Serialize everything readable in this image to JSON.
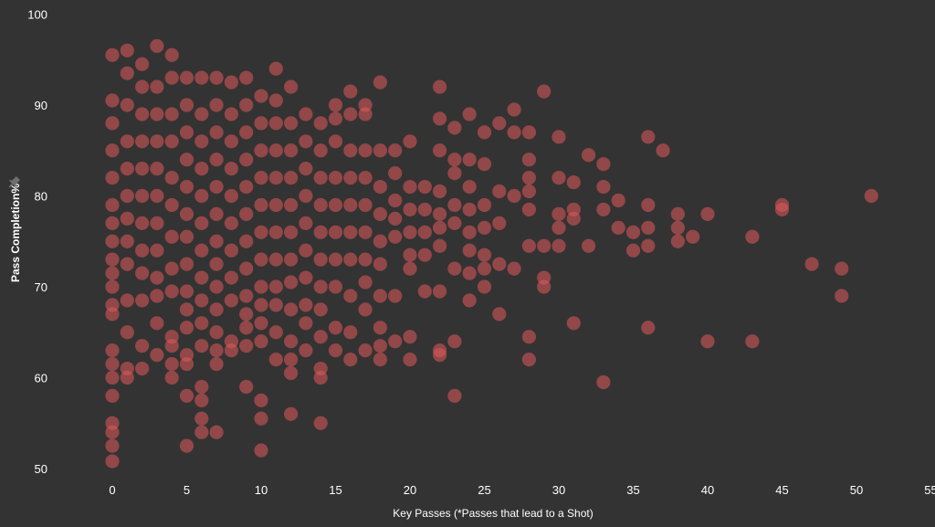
{
  "chart_data": {
    "type": "scatter",
    "xlabel": "Key Passes (*Passes that lead to a Shot)",
    "ylabel": "Pass Completion%",
    "xlim": [
      0,
      55
    ],
    "ylim": [
      50,
      100
    ],
    "x_ticks": [
      0,
      5,
      10,
      15,
      20,
      25,
      30,
      35,
      40,
      45,
      50,
      55
    ],
    "y_ticks": [
      50,
      60,
      70,
      80,
      90,
      100
    ],
    "grid": false,
    "colors": {
      "background": "#333333",
      "marker": "#e0585a",
      "text": "#ffffff",
      "icon": "#6e6e6e"
    },
    "y_axis_icon": "pin-icon",
    "points": [
      [
        0,
        95.5
      ],
      [
        0,
        90.5
      ],
      [
        0,
        88
      ],
      [
        0,
        85
      ],
      [
        0,
        82
      ],
      [
        0,
        79
      ],
      [
        0,
        77
      ],
      [
        0,
        75
      ],
      [
        0,
        73
      ],
      [
        0,
        71.5
      ],
      [
        0,
        70
      ],
      [
        0,
        68
      ],
      [
        0,
        67
      ],
      [
        0,
        63
      ],
      [
        0,
        61.5
      ],
      [
        0,
        60
      ],
      [
        0,
        58
      ],
      [
        0,
        55
      ],
      [
        0,
        54
      ],
      [
        0,
        52.5
      ],
      [
        0,
        50.8
      ],
      [
        1,
        96
      ],
      [
        1,
        93.5
      ],
      [
        1,
        90
      ],
      [
        1,
        86
      ],
      [
        1,
        83
      ],
      [
        1,
        80
      ],
      [
        1,
        77.5
      ],
      [
        1,
        75
      ],
      [
        1,
        72.5
      ],
      [
        1,
        68.5
      ],
      [
        1,
        65
      ],
      [
        1,
        61
      ],
      [
        1,
        60
      ],
      [
        2,
        94.5
      ],
      [
        2,
        92
      ],
      [
        2,
        89
      ],
      [
        2,
        86
      ],
      [
        2,
        83
      ],
      [
        2,
        80
      ],
      [
        2,
        77
      ],
      [
        2,
        74
      ],
      [
        2,
        71.5
      ],
      [
        2,
        68.5
      ],
      [
        2,
        63.5
      ],
      [
        2,
        61
      ],
      [
        3,
        96.5
      ],
      [
        3,
        92
      ],
      [
        3,
        89
      ],
      [
        3,
        86
      ],
      [
        3,
        83
      ],
      [
        3,
        80
      ],
      [
        3,
        77
      ],
      [
        3,
        74
      ],
      [
        3,
        71
      ],
      [
        3,
        69
      ],
      [
        3,
        66
      ],
      [
        3,
        62.5
      ],
      [
        4,
        95.5
      ],
      [
        4,
        93
      ],
      [
        4,
        89
      ],
      [
        4,
        86
      ],
      [
        4,
        82
      ],
      [
        4,
        79
      ],
      [
        4,
        75.5
      ],
      [
        4,
        72
      ],
      [
        4,
        69.5
      ],
      [
        4,
        64.5
      ],
      [
        4,
        63.5
      ],
      [
        4,
        61.5
      ],
      [
        4,
        60
      ],
      [
        5,
        93
      ],
      [
        5,
        90
      ],
      [
        5,
        87
      ],
      [
        5,
        84
      ],
      [
        5,
        81
      ],
      [
        5,
        78
      ],
      [
        5,
        75.5
      ],
      [
        5,
        72.5
      ],
      [
        5,
        69.5
      ],
      [
        5,
        67.5
      ],
      [
        5,
        65.5
      ],
      [
        5,
        62.5
      ],
      [
        5,
        61.5
      ],
      [
        5,
        58
      ],
      [
        5,
        52.5
      ],
      [
        6,
        93
      ],
      [
        6,
        89
      ],
      [
        6,
        86
      ],
      [
        6,
        83
      ],
      [
        6,
        80
      ],
      [
        6,
        77
      ],
      [
        6,
        74
      ],
      [
        6,
        71
      ],
      [
        6,
        68.5
      ],
      [
        6,
        66
      ],
      [
        6,
        63.5
      ],
      [
        6,
        59
      ],
      [
        6,
        57.5
      ],
      [
        6,
        55.5
      ],
      [
        6,
        54
      ],
      [
        7,
        93
      ],
      [
        7,
        90
      ],
      [
        7,
        87
      ],
      [
        7,
        84
      ],
      [
        7,
        81
      ],
      [
        7,
        78
      ],
      [
        7,
        75
      ],
      [
        7,
        72.5
      ],
      [
        7,
        70
      ],
      [
        7,
        67.5
      ],
      [
        7,
        65
      ],
      [
        7,
        63
      ],
      [
        7,
        61.5
      ],
      [
        7,
        54
      ],
      [
        8,
        92.5
      ],
      [
        8,
        89
      ],
      [
        8,
        86
      ],
      [
        8,
        83
      ],
      [
        8,
        80
      ],
      [
        8,
        77
      ],
      [
        8,
        74
      ],
      [
        8,
        71
      ],
      [
        8,
        68.5
      ],
      [
        8,
        64
      ],
      [
        8,
        63
      ],
      [
        9,
        93
      ],
      [
        9,
        90
      ],
      [
        9,
        87
      ],
      [
        9,
        84
      ],
      [
        9,
        81
      ],
      [
        9,
        78
      ],
      [
        9,
        75
      ],
      [
        9,
        72
      ],
      [
        9,
        69
      ],
      [
        9,
        67
      ],
      [
        9,
        65.5
      ],
      [
        9,
        63.5
      ],
      [
        9,
        59
      ],
      [
        10,
        91
      ],
      [
        10,
        88
      ],
      [
        10,
        85
      ],
      [
        10,
        82
      ],
      [
        10,
        79
      ],
      [
        10,
        76
      ],
      [
        10,
        73
      ],
      [
        10,
        70
      ],
      [
        10,
        68
      ],
      [
        10,
        66
      ],
      [
        10,
        64
      ],
      [
        10,
        57.5
      ],
      [
        10,
        55.5
      ],
      [
        10,
        52
      ],
      [
        11,
        94
      ],
      [
        11,
        90.5
      ],
      [
        11,
        88
      ],
      [
        11,
        85
      ],
      [
        11,
        82
      ],
      [
        11,
        79
      ],
      [
        11,
        76
      ],
      [
        11,
        73
      ],
      [
        11,
        70
      ],
      [
        11,
        68
      ],
      [
        11,
        65
      ],
      [
        11,
        62
      ],
      [
        12,
        92
      ],
      [
        12,
        88
      ],
      [
        12,
        85
      ],
      [
        12,
        82
      ],
      [
        12,
        79
      ],
      [
        12,
        76
      ],
      [
        12,
        73
      ],
      [
        12,
        70.5
      ],
      [
        12,
        67.5
      ],
      [
        12,
        64
      ],
      [
        12,
        62
      ],
      [
        12,
        60.5
      ],
      [
        12,
        56
      ],
      [
        13,
        89
      ],
      [
        13,
        86
      ],
      [
        13,
        83
      ],
      [
        13,
        80
      ],
      [
        13,
        77
      ],
      [
        13,
        74
      ],
      [
        13,
        71
      ],
      [
        13,
        68
      ],
      [
        13,
        66
      ],
      [
        13,
        63
      ],
      [
        14,
        88
      ],
      [
        14,
        85
      ],
      [
        14,
        82
      ],
      [
        14,
        79
      ],
      [
        14,
        76
      ],
      [
        14,
        73
      ],
      [
        14,
        70
      ],
      [
        14,
        67.5
      ],
      [
        14,
        64.5
      ],
      [
        14,
        61
      ],
      [
        14,
        60
      ],
      [
        14,
        55
      ],
      [
        15,
        90
      ],
      [
        15,
        88.5
      ],
      [
        15,
        86
      ],
      [
        15,
        82
      ],
      [
        15,
        79
      ],
      [
        15,
        76
      ],
      [
        15,
        73
      ],
      [
        15,
        70
      ],
      [
        15,
        65.5
      ],
      [
        15,
        63
      ],
      [
        16,
        91.5
      ],
      [
        16,
        89
      ],
      [
        16,
        85
      ],
      [
        16,
        82
      ],
      [
        16,
        79
      ],
      [
        16,
        76
      ],
      [
        16,
        73
      ],
      [
        16,
        69
      ],
      [
        16,
        65
      ],
      [
        16,
        62
      ],
      [
        17,
        90
      ],
      [
        17,
        89
      ],
      [
        17,
        85
      ],
      [
        17,
        82
      ],
      [
        17,
        79
      ],
      [
        17,
        76
      ],
      [
        17,
        73
      ],
      [
        17,
        70.5
      ],
      [
        17,
        67.5
      ],
      [
        17,
        63
      ],
      [
        18,
        92.5
      ],
      [
        18,
        85
      ],
      [
        18,
        81
      ],
      [
        18,
        78
      ],
      [
        18,
        75
      ],
      [
        18,
        72.5
      ],
      [
        18,
        69
      ],
      [
        18,
        65.5
      ],
      [
        18,
        63.5
      ],
      [
        18,
        62
      ],
      [
        19,
        85
      ],
      [
        19,
        82.5
      ],
      [
        19,
        79.5
      ],
      [
        19,
        77.5
      ],
      [
        19,
        75.5
      ],
      [
        19,
        69
      ],
      [
        19,
        64
      ],
      [
        20,
        86
      ],
      [
        20,
        81
      ],
      [
        20,
        78.5
      ],
      [
        20,
        76
      ],
      [
        20,
        73.5
      ],
      [
        20,
        72
      ],
      [
        20,
        64.5
      ],
      [
        20,
        62
      ],
      [
        21,
        81
      ],
      [
        21,
        78.5
      ],
      [
        21,
        76
      ],
      [
        21,
        73.5
      ],
      [
        21,
        69.5
      ],
      [
        22,
        92
      ],
      [
        22,
        88.5
      ],
      [
        22,
        85
      ],
      [
        22,
        80.5
      ],
      [
        22,
        78
      ],
      [
        22,
        76.5
      ],
      [
        22,
        74.5
      ],
      [
        22,
        69.5
      ],
      [
        22,
        63
      ],
      [
        22,
        62.5
      ],
      [
        23,
        87.5
      ],
      [
        23,
        84
      ],
      [
        23,
        82.5
      ],
      [
        23,
        79
      ],
      [
        23,
        77
      ],
      [
        23,
        72
      ],
      [
        23,
        64
      ],
      [
        23,
        58
      ],
      [
        24,
        89
      ],
      [
        24,
        84
      ],
      [
        24,
        81
      ],
      [
        24,
        78.5
      ],
      [
        24,
        76
      ],
      [
        24,
        74
      ],
      [
        24,
        71.5
      ],
      [
        24,
        68.5
      ],
      [
        25,
        87
      ],
      [
        25,
        83.5
      ],
      [
        25,
        79
      ],
      [
        25,
        76.5
      ],
      [
        25,
        73.5
      ],
      [
        25,
        72
      ],
      [
        25,
        70
      ],
      [
        26,
        88
      ],
      [
        26,
        80.5
      ],
      [
        26,
        77
      ],
      [
        26,
        72.5
      ],
      [
        26,
        67
      ],
      [
        27,
        89.5
      ],
      [
        27,
        87
      ],
      [
        27,
        80
      ],
      [
        27,
        72
      ],
      [
        28,
        87
      ],
      [
        28,
        84
      ],
      [
        28,
        82
      ],
      [
        28,
        80.5
      ],
      [
        28,
        78.5
      ],
      [
        28,
        74.5
      ],
      [
        28,
        64.5
      ],
      [
        28,
        62
      ],
      [
        29,
        91.5
      ],
      [
        29,
        74.5
      ],
      [
        29,
        71
      ],
      [
        29,
        70
      ],
      [
        30,
        86.5
      ],
      [
        30,
        82
      ],
      [
        30,
        78
      ],
      [
        30,
        76.5
      ],
      [
        30,
        74.5
      ],
      [
        31,
        81.5
      ],
      [
        31,
        78.5
      ],
      [
        31,
        77.5
      ],
      [
        31,
        66
      ],
      [
        32,
        84.5
      ],
      [
        32,
        74.5
      ],
      [
        33,
        83.5
      ],
      [
        33,
        81
      ],
      [
        33,
        78.5
      ],
      [
        33,
        59.5
      ],
      [
        34,
        79.5
      ],
      [
        34,
        76.5
      ],
      [
        35,
        76
      ],
      [
        35,
        74
      ],
      [
        36,
        86.5
      ],
      [
        36,
        79
      ],
      [
        36,
        76.5
      ],
      [
        36,
        74.5
      ],
      [
        36,
        65.5
      ],
      [
        37,
        85
      ],
      [
        38,
        78
      ],
      [
        38,
        76.5
      ],
      [
        38,
        75
      ],
      [
        39,
        75.5
      ],
      [
        40,
        78
      ],
      [
        40,
        64
      ],
      [
        43,
        75.5
      ],
      [
        43,
        64
      ],
      [
        45,
        79
      ],
      [
        45,
        78.5
      ],
      [
        47,
        72.5
      ],
      [
        49,
        72
      ],
      [
        49,
        69
      ],
      [
        51,
        80
      ]
    ]
  }
}
